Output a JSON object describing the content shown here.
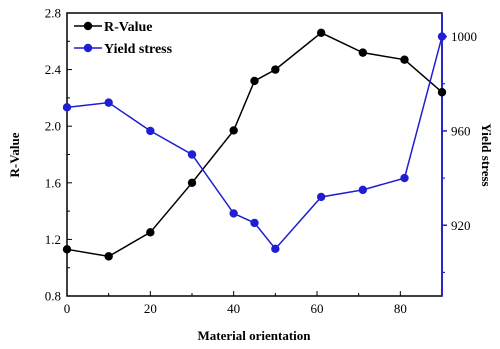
{
  "chart_data": {
    "type": "line",
    "xlabel": "Material orientation",
    "ylabel_left": "R-Value",
    "ylabel_right": "Yield stress",
    "xlim": [
      0,
      90
    ],
    "ylim_left": [
      0.8,
      2.8
    ],
    "ylim_right": [
      890,
      1010
    ],
    "x_ticks": [
      "0",
      "20",
      "40",
      "60",
      "80"
    ],
    "y_left_ticks": [
      "0.8",
      "1.2",
      "1.6",
      "2.0",
      "2.4",
      "2.8"
    ],
    "y_right_ticks": [
      "920",
      "960",
      "1000"
    ],
    "grid": false,
    "legend_position": "top-left",
    "series": [
      {
        "name": "R-Value",
        "axis": "left",
        "color": "#000000",
        "x": [
          0,
          10,
          20,
          30,
          40,
          45,
          50,
          61,
          71,
          81,
          90
        ],
        "y": [
          1.13,
          1.08,
          1.25,
          1.6,
          1.97,
          2.32,
          2.4,
          2.66,
          2.52,
          2.47,
          2.24
        ]
      },
      {
        "name": "Yield stress",
        "axis": "right",
        "color": "#1f1fd1",
        "x": [
          0,
          10,
          20,
          30,
          40,
          45,
          50,
          61,
          71,
          81,
          90
        ],
        "y": [
          970,
          972,
          960,
          950,
          925,
          921,
          910,
          932,
          935,
          940,
          1000
        ]
      }
    ]
  }
}
